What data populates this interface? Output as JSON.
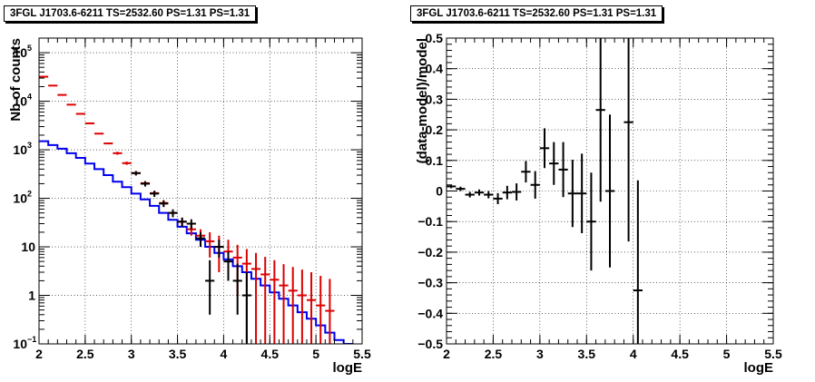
{
  "chart_data": [
    {
      "type": "scatter",
      "title": "3FGL J1703.6-6211 TS=2532.60 PS=1.31 PS=1.31",
      "xlabel": "logE",
      "ylabel": "Nb of counts",
      "xlim": [
        2,
        5.5
      ],
      "ylim": [
        0.1,
        200000
      ],
      "yscale": "log",
      "grid": true,
      "xticks": [
        {
          "v": 2,
          "label": "2"
        },
        {
          "v": 2.5,
          "label": "2.5"
        },
        {
          "v": 3,
          "label": "3"
        },
        {
          "v": 3.5,
          "label": "3.5"
        },
        {
          "v": 4,
          "label": "4"
        },
        {
          "v": 4.5,
          "label": "4.5"
        },
        {
          "v": 5,
          "label": "5"
        },
        {
          "v": 5.5,
          "label": "5.5"
        }
      ],
      "yticks": [
        {
          "v": 0.1,
          "label": "10",
          "exp": "−1"
        },
        {
          "v": 1,
          "label": "1",
          "exp": ""
        },
        {
          "v": 10,
          "label": "10",
          "exp": ""
        },
        {
          "v": 100,
          "label": "10",
          "exp": "2"
        },
        {
          "v": 1000,
          "label": "10",
          "exp": "3"
        },
        {
          "v": 10000,
          "label": "10",
          "exp": "4"
        },
        {
          "v": 100000,
          "label": "10",
          "exp": "5"
        }
      ],
      "series": [
        {
          "color": "#dd0000",
          "binwidth": 0.1,
          "points": [
            [
              2.05,
              32000,
              0,
              0
            ],
            [
              2.15,
              21000,
              0,
              0
            ],
            [
              2.25,
              13500,
              0,
              0
            ],
            [
              2.35,
              8500,
              0,
              0
            ],
            [
              2.45,
              5500,
              0,
              0
            ],
            [
              2.55,
              3500,
              0,
              0
            ],
            [
              2.65,
              2150,
              0,
              0
            ],
            [
              2.75,
              1350,
              0,
              0
            ],
            [
              2.85,
              850,
              60,
              60
            ],
            [
              2.95,
              530,
              40,
              40
            ],
            [
              3.05,
              330,
              30,
              30
            ],
            [
              3.15,
              205,
              20,
              20
            ],
            [
              3.25,
              128,
              15,
              15
            ],
            [
              3.35,
              80,
              12,
              12
            ],
            [
              3.45,
              50,
              9,
              9
            ],
            [
              3.55,
              33,
              7,
              7
            ],
            [
              3.65,
              23,
              6,
              6
            ],
            [
              3.75,
              17,
              6,
              6
            ],
            [
              3.85,
              13,
              7,
              7
            ],
            [
              3.95,
              10,
              7,
              7
            ],
            [
              4.05,
              8,
              6,
              6
            ],
            [
              4.15,
              6,
              5,
              5
            ],
            [
              4.25,
              4.5,
              4.5,
              4.4
            ],
            [
              4.35,
              3.5,
              4,
              3.4
            ],
            [
              4.45,
              2.7,
              3.5,
              2.6
            ],
            [
              4.55,
              2.1,
              3.2,
              2.0
            ],
            [
              4.65,
              1.6,
              2.8,
              1.5
            ],
            [
              4.75,
              1.25,
              2.6,
              1.15
            ],
            [
              4.85,
              1.0,
              2.4,
              0.9
            ],
            [
              4.95,
              0.8,
              2.2,
              0.7
            ],
            [
              5.05,
              0.62,
              1.9,
              0.52
            ],
            [
              5.15,
              0.48,
              1.7,
              0.38
            ]
          ]
        },
        {
          "color": "#000000",
          "binwidth": 0.1,
          "points": [
            [
              3.05,
              330,
              35,
              35
            ],
            [
              3.15,
              200,
              25,
              25
            ],
            [
              3.25,
              125,
              18,
              18
            ],
            [
              3.35,
              78,
              12,
              12
            ],
            [
              3.45,
              50,
              9,
              9
            ],
            [
              3.55,
              33,
              7,
              7
            ],
            [
              3.65,
              30,
              7,
              7
            ],
            [
              3.75,
              15,
              5,
              5
            ],
            [
              3.85,
              2,
              3.3,
              1.6
            ],
            [
              3.95,
              10,
              4,
              4
            ],
            [
              4.05,
              5,
              3,
              3
            ],
            [
              4.15,
              2,
              2.5,
              1.6
            ],
            [
              4.25,
              1,
              2,
              0.9
            ]
          ]
        }
      ],
      "model": {
        "color": "#0000ee",
        "edges": [
          2.0,
          2.1,
          2.2,
          2.3,
          2.4,
          2.5,
          2.6,
          2.7,
          2.8,
          2.9,
          3.0,
          3.1,
          3.2,
          3.3,
          3.4,
          3.5,
          3.6,
          3.7,
          3.8,
          3.9,
          4.0,
          4.1,
          4.2,
          4.3,
          4.4,
          4.5,
          4.6,
          4.7,
          4.8,
          4.9,
          5.0,
          5.1,
          5.2,
          5.3,
          5.4
        ],
        "values": [
          1500,
          1250,
          1050,
          850,
          680,
          520,
          400,
          300,
          220,
          170,
          125,
          95,
          70,
          50,
          36,
          26,
          19,
          14,
          10,
          7.5,
          5.5,
          4.0,
          3.0,
          2.2,
          1.6,
          1.15,
          0.85,
          0.62,
          0.45,
          0.33,
          0.24,
          0.17,
          0.12,
          0.09
        ]
      }
    },
    {
      "type": "scatter",
      "title": "3FGL J1703.6-6211 TS=2532.60 PS=1.31 PS=1.31",
      "xlabel": "logE",
      "ylabel": "(data-model)/model",
      "xlim": [
        2,
        5.5
      ],
      "ylim": [
        -0.5,
        0.5
      ],
      "yscale": "linear",
      "grid": true,
      "xticks": [
        {
          "v": 2,
          "label": "2"
        },
        {
          "v": 2.5,
          "label": "2.5"
        },
        {
          "v": 3,
          "label": "3"
        },
        {
          "v": 3.5,
          "label": "3.5"
        },
        {
          "v": 4,
          "label": "4"
        },
        {
          "v": 4.5,
          "label": "4.5"
        },
        {
          "v": 5,
          "label": "5"
        },
        {
          "v": 5.5,
          "label": "5.5"
        }
      ],
      "yticks": [
        {
          "v": -0.5,
          "label": "−0.5"
        },
        {
          "v": -0.4,
          "label": "−0.4"
        },
        {
          "v": -0.3,
          "label": "−0.3"
        },
        {
          "v": -0.2,
          "label": "−0.2"
        },
        {
          "v": -0.1,
          "label": "−0.1"
        },
        {
          "v": 0,
          "label": "0"
        },
        {
          "v": 0.1,
          "label": "0.1"
        },
        {
          "v": 0.2,
          "label": "0.2"
        },
        {
          "v": 0.3,
          "label": "0.3"
        },
        {
          "v": 0.4,
          "label": "0.4"
        },
        {
          "v": 0.5,
          "label": "0.5"
        }
      ],
      "series": [
        {
          "color": "#000000",
          "binwidth": 0.1,
          "points": [
            [
              2.05,
              0.015,
              0.006,
              0.006
            ],
            [
              2.15,
              0.007,
              0.007,
              0.007
            ],
            [
              2.25,
              -0.012,
              0.009,
              0.009
            ],
            [
              2.35,
              -0.005,
              0.01,
              0.01
            ],
            [
              2.45,
              -0.012,
              0.012,
              0.012
            ],
            [
              2.55,
              -0.025,
              0.018,
              0.018
            ],
            [
              2.65,
              -0.005,
              0.022,
              0.022
            ],
            [
              2.75,
              -0.003,
              0.028,
              0.028
            ],
            [
              2.85,
              0.063,
              0.035,
              0.035
            ],
            [
              2.95,
              0.02,
              0.045,
              0.045
            ],
            [
              3.05,
              0.14,
              0.065,
              0.065
            ],
            [
              3.15,
              0.09,
              0.07,
              0.07
            ],
            [
              3.25,
              0.07,
              0.09,
              0.09
            ],
            [
              3.35,
              -0.008,
              0.11,
              0.11
            ],
            [
              3.45,
              -0.008,
              0.13,
              0.13
            ],
            [
              3.55,
              -0.1,
              0.16,
              0.16
            ],
            [
              3.65,
              0.265,
              0.3,
              0.3
            ],
            [
              3.75,
              0.0,
              0.25,
              0.25
            ],
            [
              3.95,
              0.225,
              0.4,
              0.39
            ],
            [
              4.05,
              -0.325,
              0.36,
              0.36
            ]
          ]
        }
      ]
    }
  ]
}
